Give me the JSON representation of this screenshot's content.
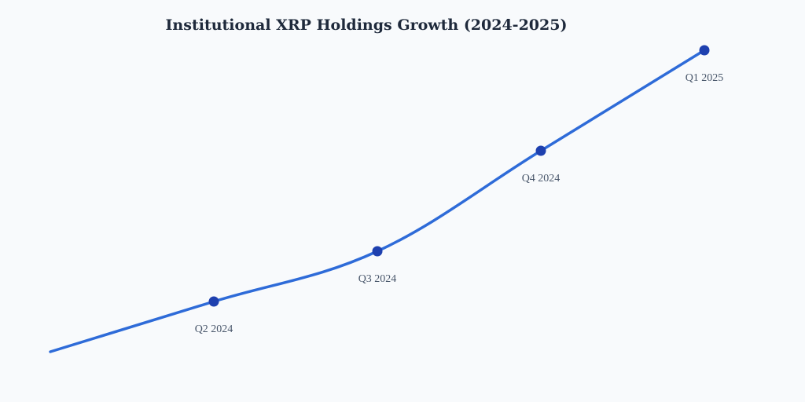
{
  "chart_data": {
    "type": "line",
    "title": "Institutional XRP Holdings Growth (2024-2025)",
    "xlabel": "",
    "ylabel": "",
    "categories": [
      "",
      "Q2 2024",
      "Q3 2024",
      "Q4 2024",
      "Q1 2025"
    ],
    "series": [
      {
        "values": [
          0,
          16,
          32,
          64,
          96
        ],
        "markers": [
          false,
          true,
          true,
          true,
          true
        ]
      }
    ],
    "ylim": [
      0,
      96
    ],
    "grid": false,
    "legend": "none",
    "colors": {
      "line": "#2e6bd8",
      "marker": "#1e40af",
      "background": "#f8fafc",
      "title": "#1e293b",
      "label": "#475569"
    }
  }
}
